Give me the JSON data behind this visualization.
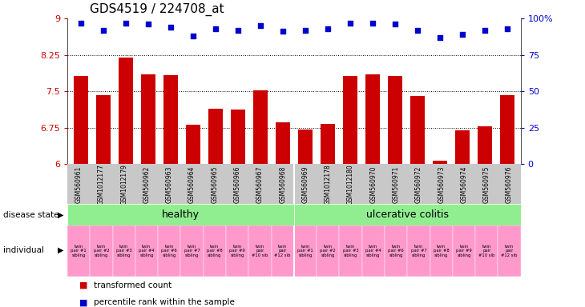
{
  "title": "GDS4519 / 224708_at",
  "samples": [
    "GSM560961",
    "GSM1012177",
    "GSM1012179",
    "GSM560962",
    "GSM560963",
    "GSM560964",
    "GSM560965",
    "GSM560966",
    "GSM560967",
    "GSM560968",
    "GSM560969",
    "GSM1012178",
    "GSM1012180",
    "GSM560970",
    "GSM560971",
    "GSM560972",
    "GSM560973",
    "GSM560974",
    "GSM560975",
    "GSM560976"
  ],
  "bar_values": [
    7.82,
    7.42,
    8.19,
    7.85,
    7.83,
    6.82,
    7.15,
    7.13,
    7.52,
    6.87,
    6.72,
    6.83,
    7.82,
    7.85,
    7.82,
    7.4,
    6.07,
    6.7,
    6.78,
    7.42
  ],
  "dot_values": [
    97,
    92,
    97,
    96,
    94,
    88,
    93,
    92,
    95,
    91,
    92,
    93,
    97,
    97,
    96,
    92,
    87,
    89,
    92,
    93
  ],
  "ylim_left": [
    6.0,
    9.0
  ],
  "ylim_right": [
    0,
    100
  ],
  "yticks_left": [
    6.0,
    6.75,
    7.5,
    8.25,
    9.0
  ],
  "ytick_labels_left": [
    "6",
    "6.75",
    "7.5",
    "8.25",
    "9"
  ],
  "yticks_right": [
    0,
    25,
    50,
    75,
    100
  ],
  "ytick_labels_right": [
    "0",
    "25",
    "50",
    "75",
    "100%"
  ],
  "hlines": [
    6.75,
    7.5,
    8.25
  ],
  "bar_color": "#CC0000",
  "dot_color": "#0000CC",
  "healthy_color": "#90EE90",
  "uc_color": "#90EE90",
  "individual_color": "#FF99CC",
  "individual_color_alt": "#FF55AA",
  "individual_labels": [
    "twin\npair #1\nsibling",
    "twin\npair #2\nsibling",
    "twin\npair #3\nsibling",
    "twin\npair #4\nsibling",
    "twin\npair #6\nsibling",
    "twin\npair #7\nsibling",
    "twin\npair #8\nsibling",
    "twin\npair #9\nsibling",
    "twin\npair\n#10 sib",
    "twin\npair\n#12 sib",
    "twin\npair #1\nsibling",
    "twin\npair #2\nsibling",
    "twin\npair #3\nsibling",
    "twin\npair #4\nsibling",
    "twin\npair #6\nsibling",
    "twin\npair #7\nsibling",
    "twin\npair #8\nsibling",
    "twin\npair #9\nsibling",
    "twin\npair\n#10 sib",
    "twin\npair\n#12 sib"
  ],
  "disease_label_healthy": "healthy",
  "disease_label_uc": "ulcerative colitis",
  "legend_bar_label": "transformed count",
  "legend_dot_label": "percentile rank within the sample",
  "xlabel_disease": "disease state",
  "xlabel_individual": "individual",
  "title_fontsize": 11,
  "bar_left_color": "#CC0000",
  "axis_right_color": "#0000CC",
  "sample_bg_color": "#C8C8C8"
}
